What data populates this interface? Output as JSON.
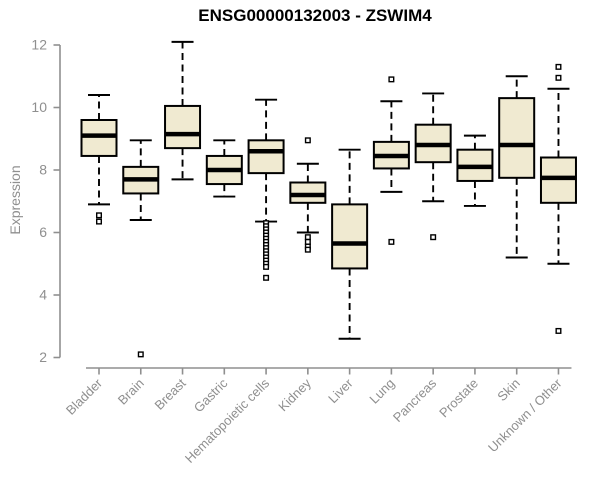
{
  "chart_data": {
    "type": "boxplot",
    "title": "ENSG00000132003 - ZSWIM4",
    "xlabel": "",
    "ylabel": "Expression",
    "ylim": [
      2,
      12
    ],
    "yticks": [
      2,
      4,
      6,
      8,
      10,
      12
    ],
    "grid": false,
    "legend": "none",
    "categories": [
      "Bladder",
      "Brain",
      "Breast",
      "Gastric",
      "Hematopoietic cells",
      "Kidney",
      "Liver",
      "Lung",
      "Pancreas",
      "Prostate",
      "Skin",
      "Unknown / Other"
    ],
    "series": [
      {
        "category": "Bladder",
        "whisker_low": 6.9,
        "q1": 8.45,
        "median": 9.1,
        "q3": 9.6,
        "whisker_high": 10.4,
        "outliers": [
          6.55,
          6.35
        ]
      },
      {
        "category": "Brain",
        "whisker_low": 6.4,
        "q1": 7.25,
        "median": 7.7,
        "q3": 8.1,
        "whisker_high": 8.95,
        "outliers": [
          2.1
        ]
      },
      {
        "category": "Breast",
        "whisker_low": 7.7,
        "q1": 8.7,
        "median": 9.15,
        "q3": 10.05,
        "whisker_high": 12.1,
        "outliers": []
      },
      {
        "category": "Gastric",
        "whisker_low": 7.15,
        "q1": 7.55,
        "median": 8.0,
        "q3": 8.45,
        "whisker_high": 8.95,
        "outliers": []
      },
      {
        "category": "Hematopoietic cells",
        "whisker_low": 6.35,
        "q1": 7.9,
        "median": 8.6,
        "q3": 8.95,
        "whisker_high": 10.25,
        "outliers": [
          6.3,
          6.2,
          6.1,
          6.0,
          5.9,
          5.8,
          5.7,
          5.6,
          5.5,
          5.4,
          5.3,
          5.2,
          5.1,
          5.0,
          4.9,
          4.55
        ]
      },
      {
        "category": "Kidney",
        "whisker_low": 6.0,
        "q1": 6.95,
        "median": 7.2,
        "q3": 7.6,
        "whisker_high": 8.2,
        "outliers": [
          8.95,
          5.85,
          5.7,
          5.55,
          5.45
        ]
      },
      {
        "category": "Liver",
        "whisker_low": 2.6,
        "q1": 4.85,
        "median": 5.65,
        "q3": 6.9,
        "whisker_high": 8.65,
        "outliers": []
      },
      {
        "category": "Lung",
        "whisker_low": 7.3,
        "q1": 8.05,
        "median": 8.45,
        "q3": 8.9,
        "whisker_high": 10.2,
        "outliers": [
          10.9,
          5.7
        ]
      },
      {
        "category": "Pancreas",
        "whisker_low": 7.0,
        "q1": 8.25,
        "median": 8.8,
        "q3": 9.45,
        "whisker_high": 10.45,
        "outliers": [
          5.85
        ]
      },
      {
        "category": "Prostate",
        "whisker_low": 6.85,
        "q1": 7.65,
        "median": 8.1,
        "q3": 8.65,
        "whisker_high": 9.1,
        "outliers": []
      },
      {
        "category": "Skin",
        "whisker_low": 5.2,
        "q1": 7.75,
        "median": 8.8,
        "q3": 10.3,
        "whisker_high": 11.0,
        "outliers": []
      },
      {
        "category": "Unknown / Other",
        "whisker_low": 5.0,
        "q1": 6.95,
        "median": 7.75,
        "q3": 8.4,
        "whisker_high": 10.6,
        "outliers": [
          11.3,
          10.95,
          2.85
        ]
      }
    ],
    "style": {
      "box_fill": "#F0EAD1",
      "box_border": "#000000",
      "median_color": "#000000",
      "whisker_color": "#000000",
      "outlier_color": "#000000",
      "axis_color": "#8F8F8F",
      "title_color": "#000000",
      "background": "#FFFFFF"
    }
  }
}
